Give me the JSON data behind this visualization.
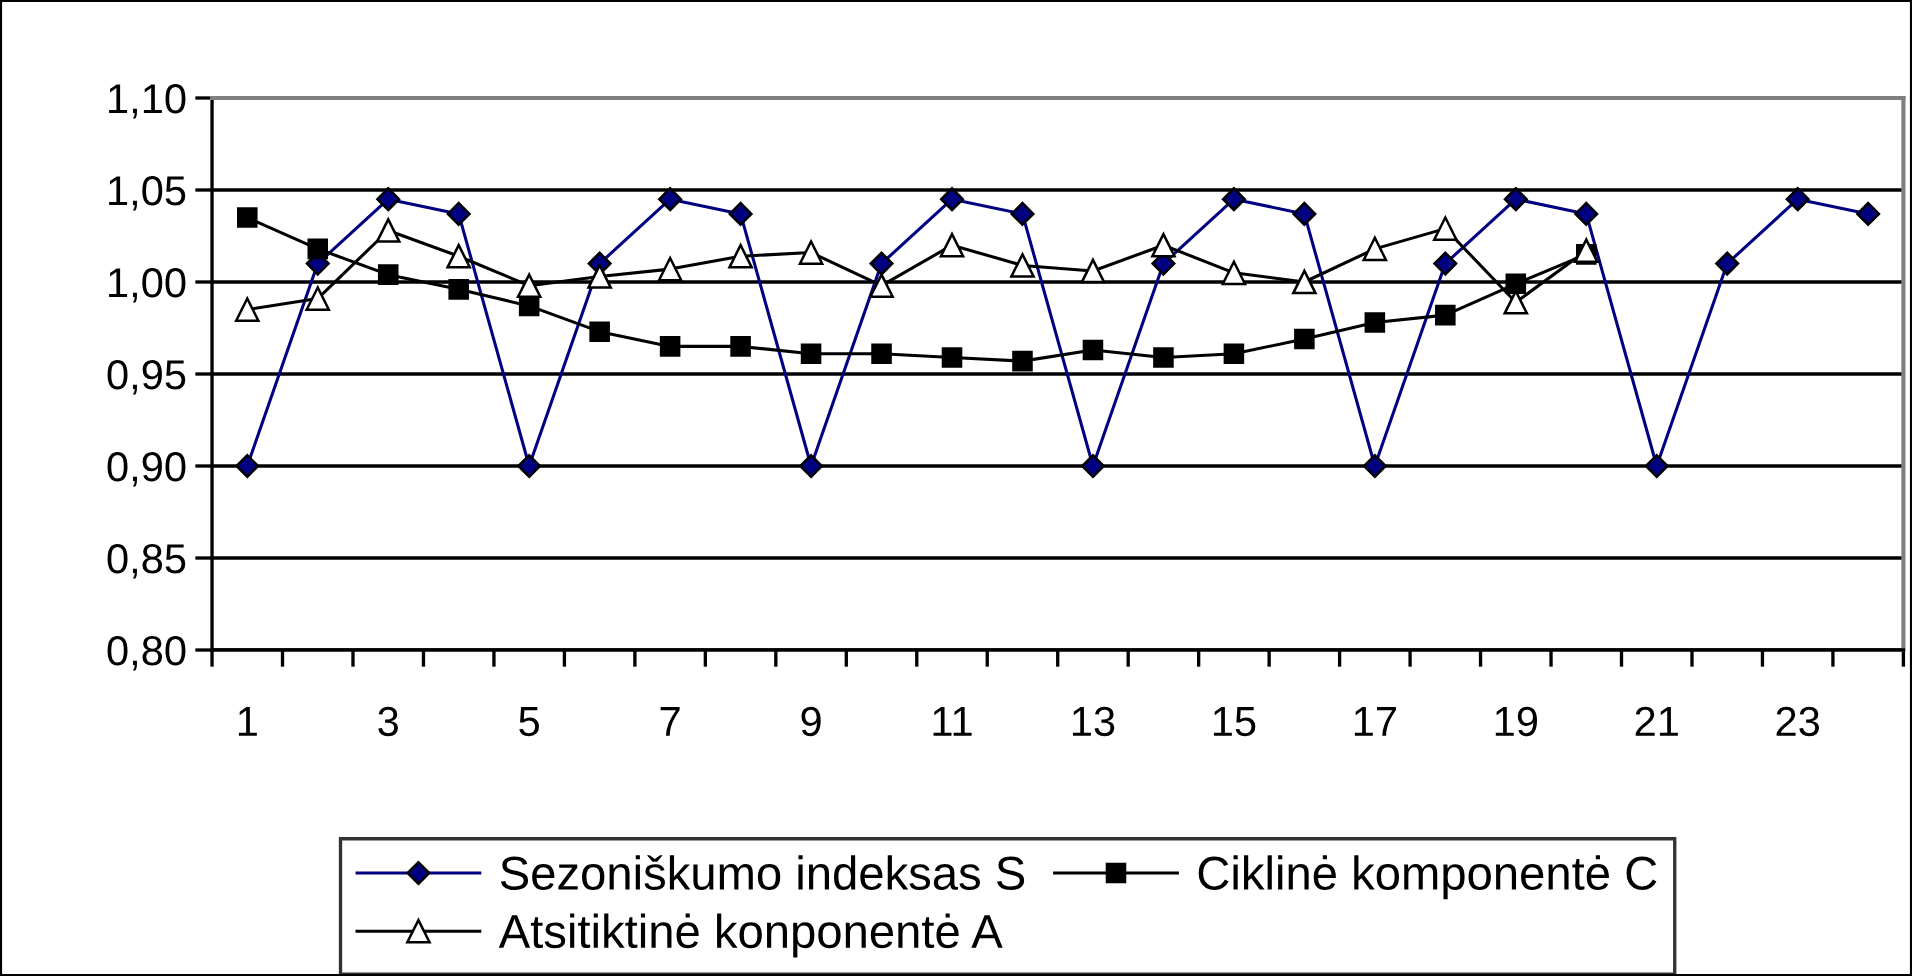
{
  "chart_data": {
    "type": "line",
    "categories": [
      "1",
      null,
      "3",
      null,
      "5",
      null,
      "7",
      null,
      "9",
      null,
      "11",
      null,
      "13",
      null,
      "15",
      null,
      "17",
      null,
      "19",
      null,
      "21",
      null,
      "23",
      null
    ],
    "series": [
      {
        "name": "Sezoniškumo indeksas S",
        "color": "#000080",
        "marker": "diamond",
        "values": [
          0.9,
          1.01,
          1.045,
          1.037,
          0.9,
          1.01,
          1.045,
          1.037,
          0.9,
          1.01,
          1.045,
          1.037,
          0.9,
          1.01,
          1.045,
          1.037,
          0.9,
          1.01,
          1.045,
          1.037,
          0.9,
          1.01,
          1.045,
          1.037
        ]
      },
      {
        "name": "Ciklinė komponentė C",
        "color": "#000000",
        "marker": "square",
        "values": [
          1.035,
          1.018,
          1.004,
          0.996,
          0.987,
          0.973,
          0.965,
          0.965,
          0.961,
          0.961,
          0.959,
          0.957,
          0.963,
          0.959,
          0.961,
          0.969,
          0.978,
          0.982,
          0.999,
          1.015,
          null,
          null,
          null,
          null
        ]
      },
      {
        "name": "Atsitiktinė konponentė A",
        "color": "#000000",
        "marker": "triangle",
        "values": [
          0.985,
          0.991,
          1.028,
          1.014,
          0.998,
          1.003,
          1.007,
          1.014,
          1.016,
          0.998,
          1.02,
          1.009,
          1.006,
          1.02,
          1.005,
          1.0,
          1.018,
          1.029,
          0.989,
          1.017,
          null,
          null,
          null,
          null
        ]
      }
    ],
    "ylim": [
      0.8,
      1.1
    ],
    "yticks": [
      {
        "value": 0.8,
        "label": "0,80"
      },
      {
        "value": 0.85,
        "label": "0,85"
      },
      {
        "value": 0.9,
        "label": "0,90"
      },
      {
        "value": 0.95,
        "label": "0,95"
      },
      {
        "value": 1.0,
        "label": "1,00"
      },
      {
        "value": 1.05,
        "label": "1,05"
      },
      {
        "value": 1.1,
        "label": "1,10"
      }
    ],
    "grid": "y",
    "legend": "bottom"
  }
}
